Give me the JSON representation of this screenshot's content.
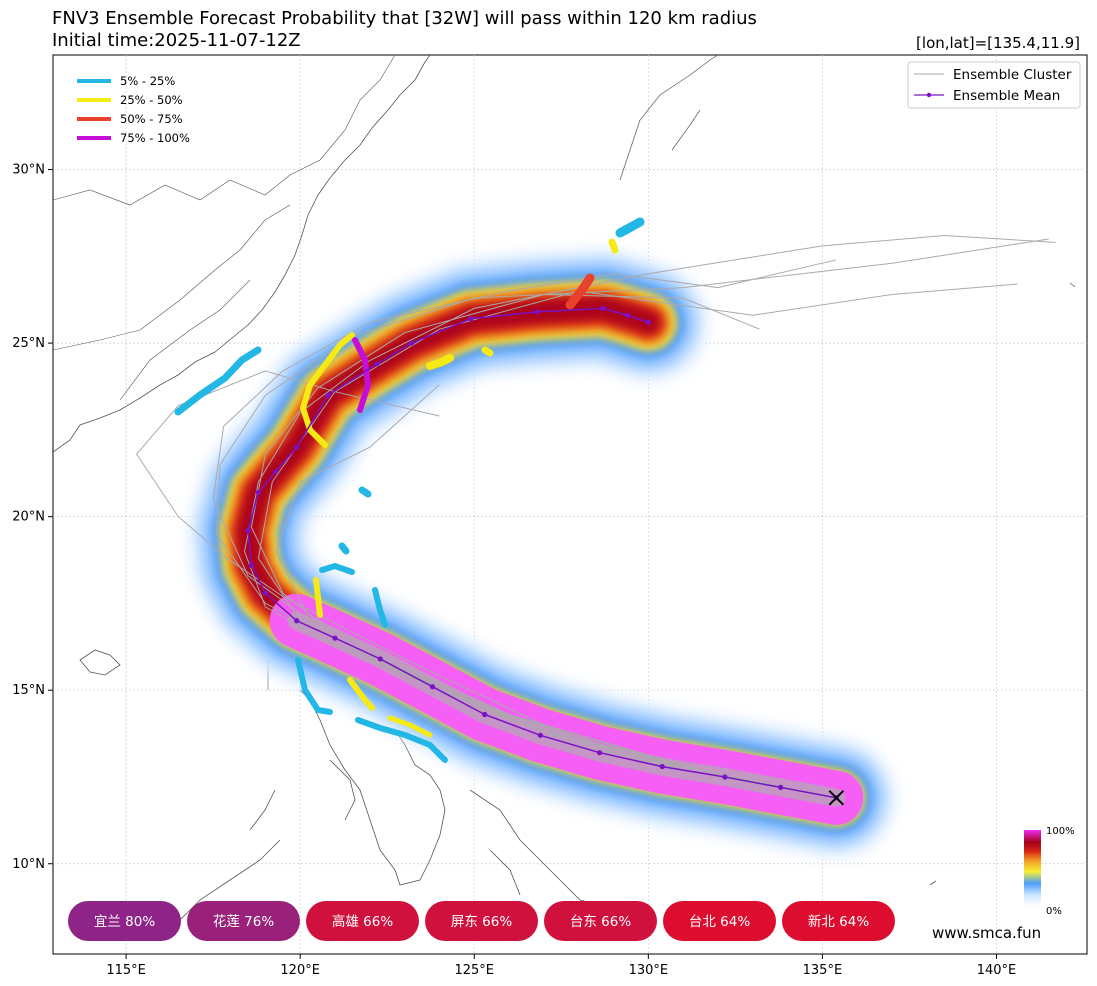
{
  "title": {
    "line1": "FNV3 Ensemble Forecast Probability that [32W] will pass within 120 km radius",
    "line2": "Initial time:2025-11-07-12Z",
    "coord": "[lon,lat]=[135.4,11.9]"
  },
  "probability_legend": [
    {
      "label": "5% - 25%",
      "color": "#23b7e5"
    },
    {
      "label": "25% - 50%",
      "color": "#f5ea14"
    },
    {
      "label": "50% - 75%",
      "color": "#e8412c"
    },
    {
      "label": "75% - 100%",
      "color": "#c40fd8"
    }
  ],
  "series_legend": [
    {
      "label": "Ensemble Cluster",
      "color": "#aaaaaa"
    },
    {
      "label": "Ensemble Mean",
      "color": "#7a10c8"
    }
  ],
  "colorbar": {
    "top_label": "100%",
    "bottom_label": "0%"
  },
  "city_pills": [
    {
      "label": "宜兰 80%",
      "color": "#8e2487"
    },
    {
      "label": "花莲 76%",
      "color": "#99217a"
    },
    {
      "label": "高雄 66%",
      "color": "#d0113e"
    },
    {
      "label": "屏东 66%",
      "color": "#d0113e"
    },
    {
      "label": "台东 66%",
      "color": "#d0113e"
    },
    {
      "label": "台北 64%",
      "color": "#dc0d2e"
    },
    {
      "label": "新北 64%",
      "color": "#dc0d2e"
    }
  ],
  "watermark": "www.smca.fun",
  "chart_data": {
    "type": "line",
    "x_ticks": [
      {
        "value": 115,
        "label": "115°E"
      },
      {
        "value": 120,
        "label": "120°E"
      },
      {
        "value": 125,
        "label": "125°E"
      },
      {
        "value": 130,
        "label": "130°E"
      },
      {
        "value": 135,
        "label": "135°E"
      },
      {
        "value": 140,
        "label": "140°E"
      }
    ],
    "y_ticks": [
      {
        "value": 10,
        "label": "10°N"
      },
      {
        "value": 15,
        "label": "15°N"
      },
      {
        "value": 20,
        "label": "20°N"
      },
      {
        "value": 25,
        "label": "25°N"
      },
      {
        "value": 30,
        "label": "30°N"
      }
    ],
    "xlim": [
      112.9,
      142.6
    ],
    "ylim": [
      7.4,
      33.3
    ],
    "grid": true,
    "initial_position": {
      "lon": 135.4,
      "lat": 11.9
    },
    "series": [
      {
        "name": "Ensemble Mean",
        "lon": [
          135.4,
          133.8,
          132.2,
          130.4,
          128.6,
          126.9,
          125.3,
          123.8,
          122.3,
          121.0,
          119.9,
          119.0,
          118.6,
          118.5,
          118.8,
          119.3,
          119.9,
          120.8,
          122.2,
          123.2,
          124.9,
          126.8,
          128.7,
          129.4,
          130.0
        ],
        "lat": [
          11.9,
          12.2,
          12.5,
          12.8,
          13.2,
          13.7,
          14.3,
          15.1,
          15.9,
          16.5,
          17.0,
          17.8,
          18.6,
          19.6,
          20.7,
          21.3,
          22.0,
          23.5,
          24.4,
          25.0,
          25.7,
          25.9,
          26.0,
          25.8,
          25.6
        ]
      }
    ],
    "probability_band": {
      "description_levels": [
        "5% - 25%",
        "25% - 50%",
        "50% - 75%",
        "75% - 100%"
      ]
    },
    "ensemble_cluster_tracks": [
      {
        "lon": [
          135.4,
          132,
          128,
          124,
          121,
          119,
          118.4,
          118.8,
          120,
          122,
          125,
          130,
          135,
          138.5,
          141.7
        ],
        "lat": [
          11.9,
          12.5,
          13.4,
          15.0,
          16.3,
          17.4,
          19,
          21,
          23,
          24.5,
          26,
          27,
          27.8,
          28.1,
          27.9
        ]
      },
      {
        "lon": [
          135.4,
          131,
          126,
          122,
          119,
          117.6,
          117.7,
          119,
          121.5,
          125,
          131,
          137,
          141.5
        ],
        "lat": [
          11.9,
          12.8,
          14.3,
          16.0,
          17.5,
          19.5,
          21.5,
          23.5,
          25.2,
          26.3,
          26.6,
          27.3,
          28.0
        ]
      },
      {
        "lon": [
          135.4,
          131,
          127,
          123,
          120,
          118.8,
          119.2,
          121,
          124,
          128,
          133,
          137,
          140.6
        ],
        "lat": [
          11.9,
          12.8,
          13.8,
          15.5,
          17.0,
          18.8,
          21,
          23.6,
          25.4,
          26.5,
          25.8,
          26.4,
          26.7
        ]
      },
      {
        "lon": [
          135.4,
          130,
          125,
          121.5,
          119.5,
          118.6,
          119,
          120.5,
          123,
          127,
          131,
          133.2
        ],
        "lat": [
          11.9,
          12.9,
          14.5,
          16.2,
          17.8,
          19.7,
          21.8,
          23.7,
          25.3,
          26.4,
          26.3,
          25.4
        ]
      },
      {
        "lon": [
          135.4,
          131.5,
          127,
          123,
          119.5,
          117.9,
          116.5,
          115.3,
          116.5,
          119,
          121,
          124
        ],
        "lat": [
          11.9,
          12.7,
          14.0,
          15.9,
          17.7,
          18.8,
          20.0,
          21.8,
          23.2,
          24.2,
          23.6,
          22.9
        ]
      },
      {
        "lon": [
          135.4,
          130,
          126,
          122.5,
          120.2,
          119.3,
          120,
          122,
          124
        ],
        "lat": [
          11.9,
          13.0,
          14.3,
          15.9,
          17.2,
          19.0,
          21.0,
          22.0,
          23.8
        ]
      },
      {
        "lon": [
          135.4,
          130,
          125,
          121,
          118.5,
          117.5,
          117.8,
          119.5,
          122,
          126,
          129,
          132,
          135.4
        ],
        "lat": [
          11.9,
          13.0,
          14.6,
          16.5,
          18.3,
          20.5,
          22.6,
          24.2,
          25.6,
          26.5,
          27.0,
          26.6,
          27.4
        ]
      }
    ]
  }
}
